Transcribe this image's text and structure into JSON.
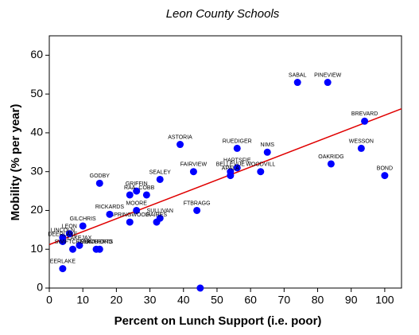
{
  "chart_data": {
    "type": "scatter",
    "title": "Leon County Schools",
    "x_label": "Percent on Lunch Support (i.e. poor)",
    "y_label": "Mobility (% per year)",
    "xlim": [
      0,
      105
    ],
    "ylim": [
      0,
      65
    ],
    "xticks": [
      0,
      10,
      20,
      30,
      40,
      50,
      60,
      70,
      80,
      90,
      100
    ],
    "yticks": [
      0,
      10,
      20,
      30,
      40,
      50,
      60
    ],
    "color": "#0000ff",
    "line_color": "#e00000",
    "x": [
      74,
      83,
      94,
      93,
      84,
      100,
      65,
      56,
      39,
      56,
      54,
      63,
      54,
      43,
      33,
      15,
      26,
      24,
      29,
      26,
      44,
      33,
      32,
      24,
      18,
      10,
      6,
      4,
      4,
      9,
      7,
      14,
      15,
      4,
      45
    ],
    "y": [
      53,
      53,
      43,
      36,
      32,
      29,
      35,
      36,
      37,
      31,
      30,
      30,
      29,
      30,
      28,
      27,
      25,
      24,
      24,
      20,
      20,
      18,
      17,
      17,
      19,
      16,
      14,
      13,
      12,
      11,
      10,
      10,
      10,
      5,
      0
    ],
    "labels": [
      "SABAL",
      "PINEVIEW",
      "BREVARD",
      "WESSON",
      "OAKRIDG",
      "BOND",
      "NIMS",
      "RUEDIGER",
      "ASTORIA",
      "HARTSFIE",
      "BELLEVUE",
      "WOODVILL",
      "APALA",
      "FAIRVIEW",
      "SEALEY",
      "GODBY",
      "GRIFFIN",
      "RAA",
      "COBB",
      "MOORE",
      "FTBRAGG",
      "SULLIVAN",
      "HAIRES",
      "SPRINGWOOD",
      "RICKARDS",
      "GILCHRIS",
      "LEON",
      "LINCOLN",
      "DEERLAKE",
      "LAKEJAX",
      "SWIFTCREEK",
      "MONTFORD",
      "ROBERTS",
      "EERLAKE",
      null
    ],
    "trend_line": {
      "x": [
        0,
        105
      ],
      "y": [
        11.2,
        46.2
      ]
    }
  }
}
